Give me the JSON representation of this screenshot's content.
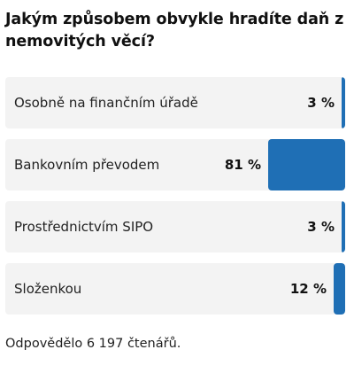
{
  "poll": {
    "question": "Jakým způsobem obvykle hradíte daň z nemovitých věcí?",
    "options": [
      {
        "label": "Osobně na finančním úřadě",
        "percent_label": "3 %",
        "percent": 3
      },
      {
        "label": "Bankovním převodem",
        "percent_label": "81 %",
        "percent": 81
      },
      {
        "label": "Prostřednictvím SIPO",
        "percent_label": "3 %",
        "percent": 3
      },
      {
        "label": "Složenkou",
        "percent_label": "12 %",
        "percent": 12
      }
    ],
    "footer": "Odpovědělo 6 197 čtenářů."
  },
  "colors": {
    "bar": "#1f6fb5",
    "option_background": "#f3f3f3"
  }
}
